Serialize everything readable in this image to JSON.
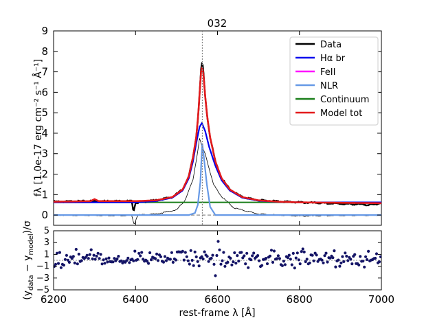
{
  "chart_data": [
    {
      "type": "line",
      "panel": "spectrum",
      "title": "032",
      "xlabel": "",
      "ylabel": "fλ [1.0e-17 erg cm⁻² s⁻¹ Å⁻¹]",
      "xlim": [
        6200,
        7000
      ],
      "ylim": [
        -0.5,
        9
      ],
      "yticks": [
        "0",
        "1",
        "2",
        "3",
        "4",
        "5",
        "6",
        "7",
        "8",
        "9"
      ],
      "vline": 6563,
      "zero_line": 0,
      "legend": [
        "Data",
        "Hα br",
        "FeII",
        "NLR",
        "Continuum",
        "Model tot"
      ],
      "legend_position": "top-right",
      "colors": {
        "data": "#000000",
        "ha_br": "#0000ee",
        "feii": "#ff00ff",
        "nlr": "#6699e6",
        "continuum": "#1a7f1a",
        "model": "#e31a1c",
        "residual_line": "#000000",
        "guide": "#888888"
      },
      "series": [
        {
          "name": "Continuum",
          "x": [
            6200,
            7000
          ],
          "y": [
            0.62,
            0.62
          ]
        },
        {
          "name": "NLR",
          "x": [
            6530,
            6545,
            6552,
            6558,
            6563,
            6568,
            6574,
            6582,
            6595
          ],
          "y": [
            0,
            0.1,
            0.5,
            1.6,
            3.5,
            2.6,
            1.5,
            0.4,
            0
          ]
        },
        {
          "name": "Hα br",
          "x": [
            6400,
            6450,
            6490,
            6515,
            6530,
            6540,
            6548,
            6556,
            6562,
            6570,
            6580,
            6595,
            6610,
            6630,
            6660,
            6700,
            6750,
            6800
          ],
          "y": [
            0.62,
            0.68,
            0.85,
            1.2,
            1.8,
            2.6,
            3.5,
            4.3,
            4.5,
            4.1,
            3.3,
            2.4,
            1.7,
            1.2,
            0.85,
            0.7,
            0.64,
            0.62
          ]
        },
        {
          "name": "Model tot",
          "x": [
            6200,
            6290,
            6300,
            6310,
            6400,
            6450,
            6490,
            6515,
            6530,
            6540,
            6548,
            6553,
            6557,
            6560,
            6563,
            6566,
            6570,
            6575,
            6582,
            6595,
            6610,
            6630,
            6660,
            6700,
            6750,
            6800,
            7000
          ],
          "y": [
            0.65,
            0.68,
            0.78,
            0.68,
            0.68,
            0.72,
            0.88,
            1.25,
            1.9,
            2.8,
            3.8,
            4.9,
            6.2,
            7.0,
            7.25,
            6.8,
            5.8,
            4.8,
            3.8,
            2.6,
            1.8,
            1.25,
            0.88,
            0.72,
            0.65,
            0.62,
            0.58
          ]
        },
        {
          "name": "Data",
          "x": [
            6200,
            6300,
            6390,
            6395,
            6400,
            6450,
            6490,
            6515,
            6530,
            6540,
            6548,
            6553,
            6557,
            6560,
            6563,
            6566,
            6570,
            6575,
            6582,
            6595,
            6610,
            6630,
            6660,
            6700,
            6800,
            6980,
            7000
          ],
          "y": [
            0.65,
            0.68,
            0.68,
            0.2,
            0.6,
            0.72,
            0.88,
            1.25,
            1.9,
            2.8,
            3.8,
            4.9,
            6.2,
            7.1,
            7.5,
            6.9,
            5.8,
            4.8,
            3.8,
            2.6,
            1.8,
            1.25,
            0.88,
            0.72,
            0.62,
            0.5,
            0.6
          ]
        },
        {
          "name": "Residual (data − model)",
          "x": [
            6200,
            6300,
            6390,
            6397,
            6405,
            6450,
            6500,
            6520,
            6540,
            6550,
            6556,
            6563,
            6570,
            6578,
            6590,
            6610,
            6640,
            6700,
            6800,
            7000
          ],
          "y": [
            0,
            -0.02,
            -0.02,
            -0.45,
            0,
            0.05,
            0.25,
            0.7,
            1.7,
            2.9,
            3.75,
            3.3,
            3.0,
            2.4,
            1.5,
            0.9,
            0.35,
            0.05,
            -0.05,
            0
          ]
        }
      ]
    },
    {
      "type": "scatter",
      "panel": "residuals",
      "xlabel": "rest-frame λ [Å]",
      "ylabel": "(y_data − y_model)/σ",
      "ylabel_main": "(y",
      "ylabel_sub1": "data",
      "ylabel_mid": " − y",
      "ylabel_sub2": "model",
      "ylabel_end": ")/σ",
      "xlim": [
        6200,
        7000
      ],
      "ylim": [
        -5,
        5
      ],
      "xticks": [
        "6200",
        "6400",
        "6600",
        "6800",
        "7000"
      ],
      "yticks": [
        "−5",
        "−3",
        "−1",
        "1",
        "3",
        "5"
      ],
      "zero_line": 0,
      "point_color": "#141466",
      "point_count": 240,
      "value_range": [
        -2.6,
        3.2
      ]
    }
  ]
}
